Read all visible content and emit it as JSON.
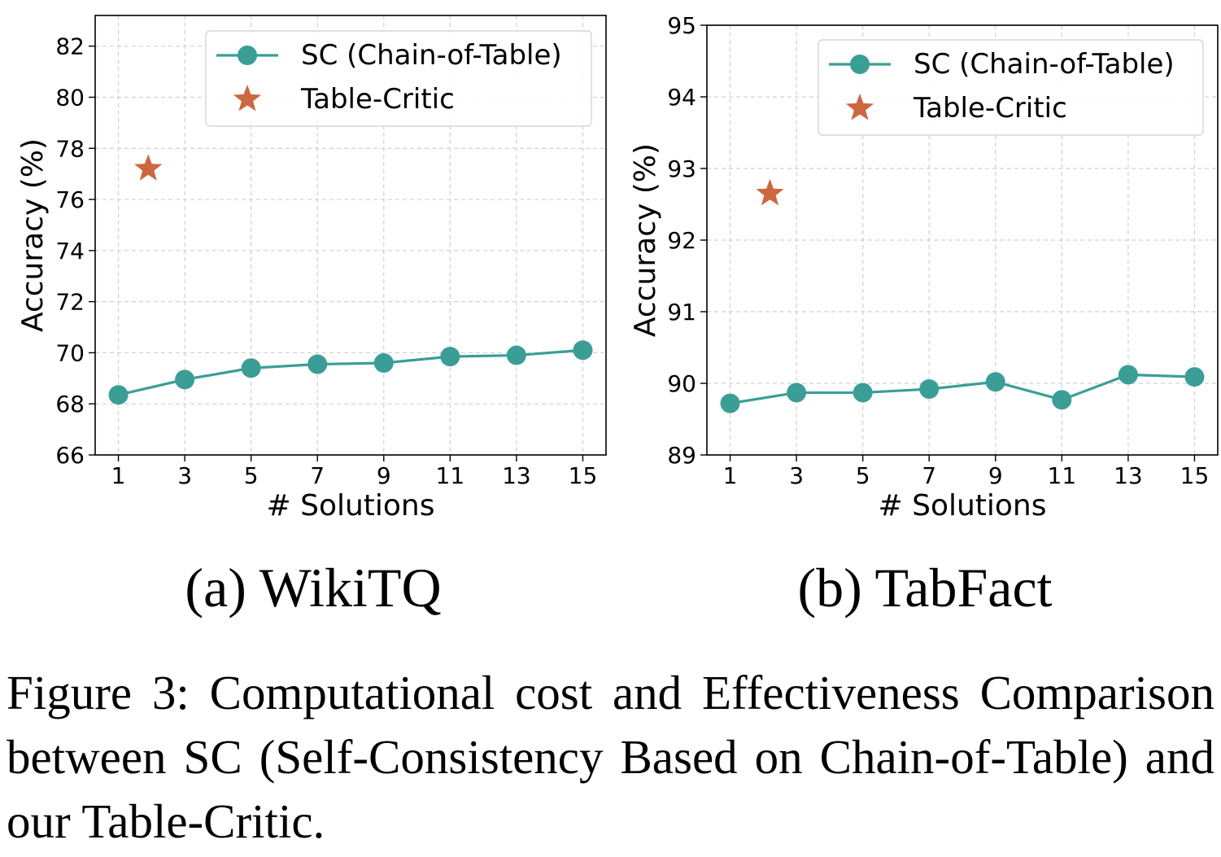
{
  "charts": [
    {
      "id": "wikitq",
      "subcaption": "(a) WikiTQ",
      "chart_data": {
        "type": "line",
        "xlabel": "# Solutions",
        "ylabel": "Accuracy (%)",
        "x_ticks": [
          1,
          3,
          5,
          7,
          9,
          11,
          13,
          15
        ],
        "y_ticks": [
          66,
          68,
          70,
          72,
          74,
          76,
          78,
          80,
          82
        ],
        "xlim": [
          0.3,
          15.7
        ],
        "ylim": [
          66,
          83.2
        ],
        "grid": true,
        "legend_position": "top-right",
        "series": [
          {
            "name": "SC (Chain-of-Table)",
            "marker": "circle",
            "color": "#3a9e97",
            "x": [
              1,
              3,
              5,
              7,
              9,
              11,
              13,
              15
            ],
            "y": [
              68.35,
              68.95,
              69.4,
              69.55,
              69.6,
              69.85,
              69.9,
              70.1
            ]
          },
          {
            "name": "Table-Critic",
            "marker": "star",
            "color": "#cb6840",
            "x": [
              1.9
            ],
            "y": [
              77.2
            ]
          }
        ]
      }
    },
    {
      "id": "tabfact",
      "subcaption": "(b) TabFact",
      "chart_data": {
        "type": "line",
        "xlabel": "# Solutions",
        "ylabel": "Accuracy (%)",
        "x_ticks": [
          1,
          3,
          5,
          7,
          9,
          11,
          13,
          15
        ],
        "y_ticks": [
          89,
          90,
          91,
          92,
          93,
          94,
          95
        ],
        "xlim": [
          0.3,
          15.7
        ],
        "ylim": [
          89,
          95
        ],
        "grid": true,
        "legend_position": "top-right",
        "series": [
          {
            "name": "SC (Chain-of-Table)",
            "marker": "circle",
            "color": "#3a9e97",
            "x": [
              1,
              3,
              5,
              7,
              9,
              11,
              13,
              15
            ],
            "y": [
              89.72,
              89.87,
              89.87,
              89.92,
              90.02,
              89.77,
              90.12,
              90.09
            ]
          },
          {
            "name": "Table-Critic",
            "marker": "star",
            "color": "#cb6840",
            "x": [
              2.2
            ],
            "y": [
              92.65
            ]
          }
        ]
      }
    }
  ],
  "figure_caption": "Figure 3: Computational cost and Effectiveness Comparison between SC (Self-Consistency Based on Chain-of-Table) and our Table-Critic."
}
